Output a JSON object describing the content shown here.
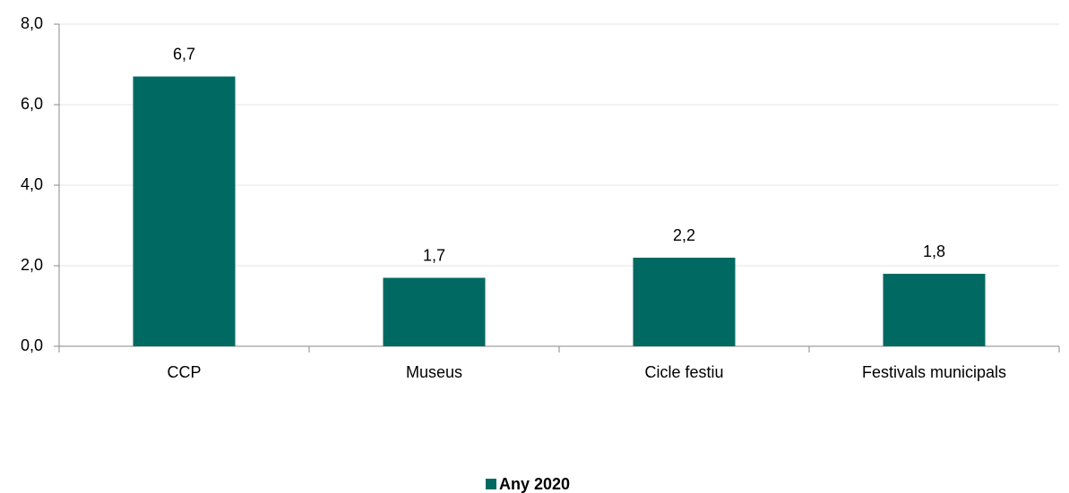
{
  "chart_data": {
    "type": "bar",
    "categories": [
      "CCP",
      "Museus",
      "Cicle festiu",
      "Festivals municipals"
    ],
    "series": [
      {
        "name": "Any 2020",
        "color": "#006a62",
        "values": [
          6.7,
          1.7,
          2.2,
          1.8
        ],
        "value_labels": [
          "6,7",
          "1,7",
          "2,2",
          "1,8"
        ]
      }
    ],
    "ylim": [
      0,
      8
    ],
    "yticks": [
      {
        "value": 0,
        "label": "0,0"
      },
      {
        "value": 2,
        "label": "2,0"
      },
      {
        "value": 4,
        "label": "4,0"
      },
      {
        "value": 6,
        "label": "6,0"
      },
      {
        "value": 8,
        "label": "8,0"
      }
    ],
    "grid": true,
    "legend": "bottom"
  }
}
